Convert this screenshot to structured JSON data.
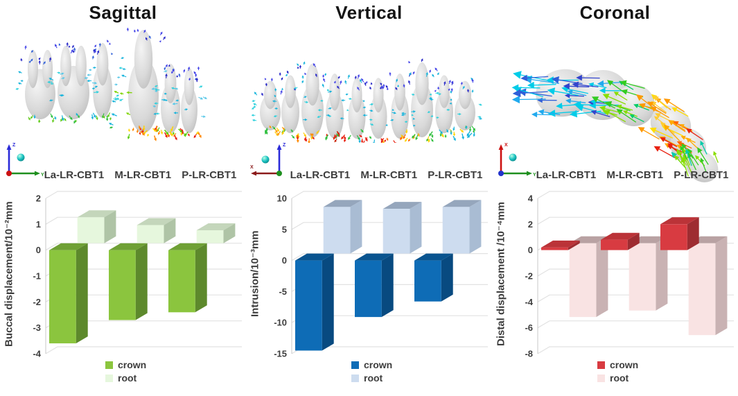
{
  "panels": [
    {
      "title": "Sagittal",
      "triad": {
        "vertical_axis": "Z",
        "vertical_color": "#2B2BD8",
        "horizontal_axis": "Y",
        "horizontal_color": "#1E8F1E",
        "horizontal_direction": "right",
        "origin_dot_color": "#CC1111",
        "sphere_color": "#18C0C0"
      }
    },
    {
      "title": "Vertical",
      "triad": {
        "vertical_axis": "Z",
        "vertical_color": "#2B2BD8",
        "horizontal_axis": "X",
        "horizontal_color": "#8B1A1A",
        "horizontal_direction": "left",
        "origin_dot_color": "#1E8F1E",
        "sphere_color": "#18C0C0"
      }
    },
    {
      "title": "Coronal",
      "triad": {
        "vertical_axis": "X",
        "vertical_color": "#CC1111",
        "horizontal_axis": "Y",
        "horizontal_color": "#1E8F1E",
        "horizontal_direction": "right",
        "origin_dot_color": "#2233CC",
        "sphere_color": "#18C0C0"
      }
    }
  ],
  "chart_data": [
    {
      "id": "sagittal",
      "type": "bar",
      "categories": [
        "La-LR-CBT1",
        "M-LR-CBT1",
        "P-LR-CBT1"
      ],
      "series": [
        {
          "name": "crown",
          "values": [
            -3.6,
            -2.7,
            -2.4
          ],
          "front": "#8BC53E",
          "top": "#6FA035",
          "side": "#5D892C"
        },
        {
          "name": "root",
          "values": [
            1.0,
            0.7,
            0.5
          ],
          "front": "#E6F7DD",
          "top": "#C4D6BB",
          "side": "#AFC4A6"
        }
      ],
      "ylabel": "Buccal displacement/10⁻²mm",
      "xlabel": "",
      "ylim": [
        -4,
        2
      ],
      "yticks": [
        2,
        1,
        0,
        -1,
        -2,
        -3,
        -4
      ],
      "grid": true,
      "legend_position": "bottom"
    },
    {
      "id": "vertical",
      "type": "bar",
      "categories": [
        "La-LR-CBT1",
        "M-LR-CBT1",
        "P-LR-CBT1"
      ],
      "series": [
        {
          "name": "crown",
          "values": [
            -14.5,
            -9.1,
            -6.6
          ],
          "front": "#0E6CB6",
          "top": "#09548F",
          "side": "#084A80"
        },
        {
          "name": "root",
          "values": [
            7.5,
            7.2,
            7.5
          ],
          "front": "#CDDCEF",
          "top": "#95A6BC",
          "side": "#A9BCD3"
        }
      ],
      "ylabel": "Intrusion/10⁻³mm",
      "xlabel": "",
      "ylim": [
        -15,
        10
      ],
      "yticks": [
        10,
        5,
        0,
        -5,
        -10,
        -15
      ],
      "grid": true,
      "legend_position": "bottom"
    },
    {
      "id": "coronal",
      "type": "bar",
      "categories": [
        "La-LR-CBT1",
        "M-LR-CBT1",
        "P-LR-CBT1"
      ],
      "series": [
        {
          "name": "crown",
          "values": [
            0.2,
            0.8,
            2.0
          ],
          "front": "#D83B41",
          "top": "#BB3338",
          "side": "#9E2C31"
        },
        {
          "name": "root",
          "values": [
            -5.7,
            -5.2,
            -7.1
          ],
          "front": "#F9E3E3",
          "top": "#B9A2A3",
          "side": "#C9B2B3"
        }
      ],
      "ylabel": "Distal displacement /10⁻⁴mm",
      "xlabel": "",
      "ylim": [
        -8,
        4
      ],
      "yticks": [
        4,
        2,
        0,
        -2,
        -4,
        -6,
        -8
      ],
      "grid": true,
      "legend_position": "bottom"
    }
  ]
}
